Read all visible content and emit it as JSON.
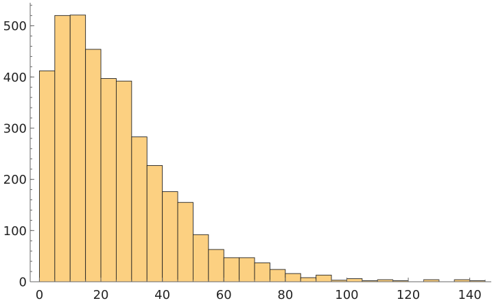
{
  "chart_data": {
    "type": "histogram",
    "title": "",
    "xlabel": "",
    "ylabel": "",
    "bin_width": 5,
    "bin_starts": [
      0,
      5,
      10,
      15,
      20,
      25,
      30,
      35,
      40,
      45,
      50,
      55,
      60,
      65,
      70,
      75,
      80,
      85,
      90,
      95,
      100,
      105,
      110,
      115,
      120,
      125,
      130,
      135,
      140
    ],
    "values": [
      412,
      520,
      521,
      454,
      397,
      392,
      283,
      227,
      176,
      155,
      92,
      63,
      47,
      47,
      37,
      24,
      16,
      8,
      13,
      3,
      6,
      2,
      4,
      2,
      0,
      4,
      0,
      4,
      2
    ],
    "xlim": [
      -3,
      147
    ],
    "ylim": [
      0,
      545
    ],
    "xticks": [
      0,
      20,
      40,
      60,
      80,
      100,
      120,
      140
    ],
    "yticks": [
      0,
      100,
      200,
      300,
      400,
      500
    ],
    "xticks_minor_step": 5,
    "yticks_minor_step": 20,
    "grid": false,
    "colors": {
      "bar_fill": "#FCD081",
      "bar_edge": "#222222",
      "axis": "#666666"
    }
  }
}
